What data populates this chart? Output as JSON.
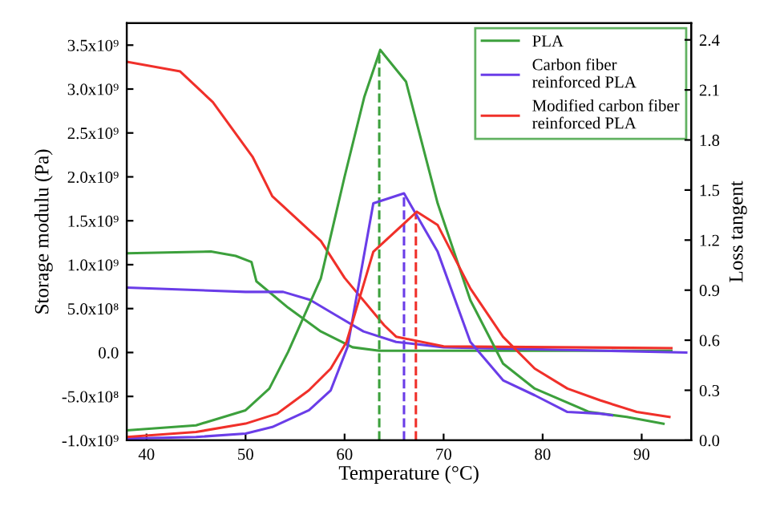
{
  "chart_data": {
    "type": "line",
    "xlabel": "Temperature (°C)",
    "ylabel": "Storage modulu (Pa)",
    "y2label": "Loss tangent",
    "xlim": [
      38,
      95
    ],
    "xticks": [
      40,
      50,
      60,
      70,
      80,
      90
    ],
    "ylim": [
      -1000000000.0,
      3750000000.0
    ],
    "yticks": [
      {
        "value": -1000000000.0,
        "label": "-1.0x10⁹"
      },
      {
        "value": -500000000.0,
        "label": "-5.0x10⁸"
      },
      {
        "value": 0,
        "label": "0.0"
      },
      {
        "value": 500000000.0,
        "label": "5.0x10⁸"
      },
      {
        "value": 1000000000.0,
        "label": "1.0x10⁹"
      },
      {
        "value": 1500000000.0,
        "label": "1.5x10⁹"
      },
      {
        "value": 2000000000.0,
        "label": "2.0x10⁹"
      },
      {
        "value": 2500000000.0,
        "label": "2.5x10⁹"
      },
      {
        "value": 3000000000.0,
        "label": "3.0x10⁹"
      },
      {
        "value": 3500000000.0,
        "label": "3.5x10⁹"
      }
    ],
    "y2lim": [
      0.0,
      2.5
    ],
    "y2ticks": [
      {
        "value": 0,
        "label": "0.0"
      },
      0.3,
      0.6,
      0.9,
      1.2,
      1.5,
      1.8,
      2.1,
      2.4
    ],
    "legend": "top right",
    "grid": false,
    "line_style": "solid",
    "marker": "none",
    "series": [
      {
        "name": "PLA",
        "color": "#3ca03c",
        "x": [
          38,
          46.5,
          49,
          50.6,
          51.1,
          54.3,
          57.6,
          60.8,
          63.5,
          70,
          93
        ],
        "values": [
          1130000000.0,
          1150000000.0,
          1100000000.0,
          1030000000.0,
          810000000.0,
          510000000.0,
          240000000.0,
          60000000.0,
          20000000.0,
          20000000.0,
          20000000.0
        ]
      },
      {
        "name": "Carbon fiber\nreinforced PLA",
        "color": "#6a3de8",
        "x": [
          38,
          50,
          53.8,
          56.5,
          59.2,
          61.9,
          65.2,
          70,
          94.5
        ],
        "values": [
          740000000.0,
          690000000.0,
          690000000.0,
          600000000.0,
          420000000.0,
          240000000.0,
          120000000.0,
          60000000.0,
          0
        ]
      },
      {
        "name": "Modified carbon fiber\nreinforced PLA",
        "color": "#f0302a",
        "x": [
          38,
          43.4,
          46.7,
          50.7,
          52.7,
          57.6,
          60,
          64,
          65.2,
          70,
          93
        ],
        "values": [
          3310000000.0,
          3200000000.0,
          2850000000.0,
          2230000000.0,
          1780000000.0,
          1270000000.0,
          850000000.0,
          310000000.0,
          180000000.0,
          70000000.0,
          50000000.0
        ]
      },
      {
        "color": "#3ca03c",
        "axis": "y2",
        "x": [
          38,
          45,
          50,
          52.4,
          54.3,
          57.6,
          60,
          62,
          63.6,
          66.2,
          69.4,
          72.7,
          76,
          79.2,
          84.7,
          88.5,
          92.2
        ],
        "values": [
          0.06,
          0.09,
          0.18,
          0.31,
          0.53,
          0.97,
          1.58,
          2.06,
          2.34,
          2.15,
          1.42,
          0.84,
          0.46,
          0.31,
          0.17,
          0.14,
          0.1
        ]
      },
      {
        "color": "#6a3de8",
        "axis": "y2",
        "x": [
          38,
          45,
          50,
          52.7,
          56.4,
          58.6,
          60.3,
          62.9,
          66,
          69.4,
          72.7,
          76,
          79.2,
          82.5,
          85.8,
          87
        ],
        "values": [
          0.01,
          0.02,
          0.04,
          0.08,
          0.18,
          0.3,
          0.56,
          1.42,
          1.48,
          1.13,
          0.59,
          0.36,
          0.27,
          0.17,
          0.16,
          0.15
        ]
      },
      {
        "color": "#f0302a",
        "axis": "y2",
        "x": [
          38,
          45,
          50,
          53.2,
          56.4,
          58.6,
          60.2,
          62.9,
          67.3,
          69.4,
          72.7,
          76,
          79.2,
          82.5,
          85.8,
          89.5,
          92.8
        ],
        "values": [
          0.02,
          0.05,
          0.1,
          0.16,
          0.3,
          0.43,
          0.59,
          1.13,
          1.37,
          1.29,
          0.91,
          0.62,
          0.43,
          0.31,
          0.24,
          0.17,
          0.14
        ]
      }
    ],
    "ref_lines": [
      {
        "axis": "x",
        "value": 63.5,
        "color": "#3ca03c",
        "line_style": "dashed"
      },
      {
        "axis": "x",
        "value": 66.0,
        "color": "#6a3de8",
        "line_style": "dashed"
      },
      {
        "axis": "x",
        "value": 67.2,
        "color": "#f0302a",
        "line_style": "dashed"
      }
    ]
  }
}
